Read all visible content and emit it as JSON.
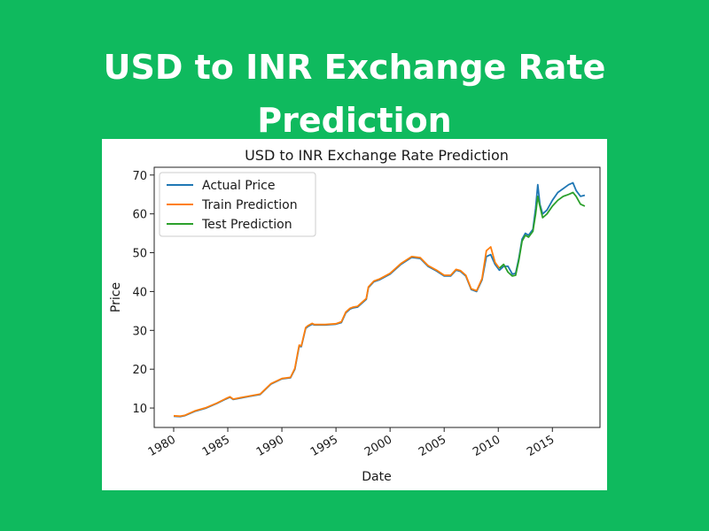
{
  "banner": {
    "line1": "USD to INR Exchange Rate",
    "line2": "Prediction"
  },
  "colors": {
    "background": "#0fba5e",
    "actual": "#1f77b4",
    "train": "#ff7f0e",
    "test": "#2ca02c"
  },
  "chart_data": {
    "type": "line",
    "title": "USD to INR Exchange Rate Prediction",
    "xlabel": "Date",
    "ylabel": "Price",
    "xlim": [
      1978.2,
      2019.4
    ],
    "ylim": [
      5,
      72
    ],
    "xticks": [
      1980,
      1985,
      1990,
      1995,
      2000,
      2005,
      2010,
      2015
    ],
    "xtick_labels": [
      "1980",
      "1985",
      "1990",
      "1995",
      "2000",
      "2005",
      "2010",
      "2015"
    ],
    "yticks": [
      10,
      20,
      30,
      40,
      50,
      60,
      70
    ],
    "ytick_labels": [
      "10",
      "20",
      "30",
      "40",
      "50",
      "60",
      "70"
    ],
    "legend_position": "top-left",
    "grid": false,
    "series": [
      {
        "name": "Actual Price",
        "color": "#1f77b4",
        "x": [
          1980.0,
          1980.6,
          1981.0,
          1982.0,
          1983.0,
          1984.0,
          1984.8,
          1985.2,
          1985.5,
          1986.2,
          1987.0,
          1988.0,
          1989.0,
          1990.0,
          1990.8,
          1991.2,
          1991.5,
          1991.6,
          1991.8,
          1992.2,
          1992.4,
          1992.8,
          1993.0,
          1993.5,
          1994.0,
          1995.0,
          1995.5,
          1995.9,
          1996.3,
          1996.6,
          1997.0,
          1997.8,
          1998.0,
          1998.5,
          1999.0,
          2000.0,
          2001.0,
          2002.0,
          2002.8,
          2003.5,
          2004.3,
          2005.0,
          2005.6,
          2006.1,
          2006.5,
          2007.0,
          2007.5,
          2008.0,
          2008.5,
          2008.9,
          2009.3,
          2009.7,
          2010.1,
          2010.5,
          2010.9,
          2011.3,
          2011.6,
          2011.9,
          2012.2,
          2012.5,
          2012.8,
          2013.2,
          2013.45,
          2013.65,
          2013.85,
          2014.1,
          2014.5,
          2015.0,
          2015.5,
          2016.0,
          2016.5,
          2016.9,
          2017.2,
          2017.6,
          2018.0
        ],
        "y": [
          7.9,
          7.8,
          8.0,
          9.2,
          10.0,
          11.2,
          12.3,
          12.8,
          12.2,
          12.6,
          13.0,
          13.5,
          16.2,
          17.5,
          17.8,
          20.0,
          24.5,
          26.0,
          25.8,
          30.5,
          31.0,
          31.6,
          31.4,
          31.4,
          31.4,
          31.6,
          32.0,
          34.5,
          35.5,
          35.8,
          36.0,
          38.0,
          41.0,
          42.5,
          43.0,
          44.5,
          47.0,
          48.8,
          48.5,
          46.5,
          45.3,
          44.0,
          44.0,
          45.5,
          45.2,
          44.0,
          40.5,
          40.0,
          43.0,
          49.0,
          49.5,
          47.0,
          45.5,
          46.5,
          46.5,
          44.5,
          44.7,
          48.5,
          53.5,
          55.0,
          54.5,
          56.0,
          61.5,
          67.5,
          62.5,
          60.0,
          61.0,
          63.5,
          65.5,
          66.5,
          67.5,
          68.0,
          66.0,
          64.5,
          64.8
        ]
      },
      {
        "name": "Train Prediction",
        "color": "#ff7f0e",
        "x": [
          1980.0,
          1980.6,
          1981.0,
          1982.0,
          1983.0,
          1984.0,
          1984.8,
          1985.2,
          1985.5,
          1986.2,
          1987.0,
          1988.0,
          1989.0,
          1990.0,
          1990.8,
          1991.2,
          1991.5,
          1991.6,
          1991.8,
          1992.2,
          1992.4,
          1992.8,
          1993.0,
          1993.5,
          1994.0,
          1995.0,
          1995.5,
          1995.9,
          1996.3,
          1996.6,
          1997.0,
          1997.8,
          1998.0,
          1998.5,
          1999.0,
          2000.0,
          2001.0,
          2002.0,
          2002.8,
          2003.5,
          2004.3,
          2005.0,
          2005.6,
          2006.1,
          2006.5,
          2007.0,
          2007.5,
          2008.0,
          2008.5,
          2008.9,
          2009.3,
          2009.7,
          2010.1
        ],
        "y": [
          8.0,
          7.9,
          8.1,
          9.3,
          10.1,
          11.3,
          12.4,
          12.9,
          12.3,
          12.7,
          13.1,
          13.6,
          16.3,
          17.6,
          17.9,
          20.2,
          24.8,
          26.2,
          26.0,
          30.7,
          31.2,
          31.8,
          31.5,
          31.5,
          31.5,
          31.7,
          32.2,
          34.7,
          35.7,
          36.0,
          36.2,
          38.2,
          41.2,
          42.7,
          43.2,
          44.7,
          47.2,
          49.0,
          48.7,
          46.7,
          45.5,
          44.2,
          44.2,
          45.7,
          45.4,
          44.2,
          40.7,
          40.2,
          43.3,
          50.5,
          51.5,
          47.5,
          46.0
        ]
      },
      {
        "name": "Test Prediction",
        "color": "#2ca02c",
        "x": [
          2010.1,
          2010.5,
          2010.9,
          2011.3,
          2011.6,
          2011.9,
          2012.2,
          2012.5,
          2012.8,
          2013.2,
          2013.45,
          2013.65,
          2013.85,
          2014.1,
          2014.5,
          2015.0,
          2015.5,
          2016.0,
          2016.5,
          2016.9,
          2017.2,
          2017.6,
          2018.0
        ],
        "y": [
          46.0,
          47.0,
          45.0,
          44.0,
          44.2,
          48.0,
          53.0,
          54.5,
          54.0,
          55.5,
          60.0,
          64.5,
          62.0,
          59.0,
          60.0,
          62.0,
          63.5,
          64.5,
          65.0,
          65.5,
          64.5,
          62.5,
          62.0
        ]
      }
    ]
  }
}
